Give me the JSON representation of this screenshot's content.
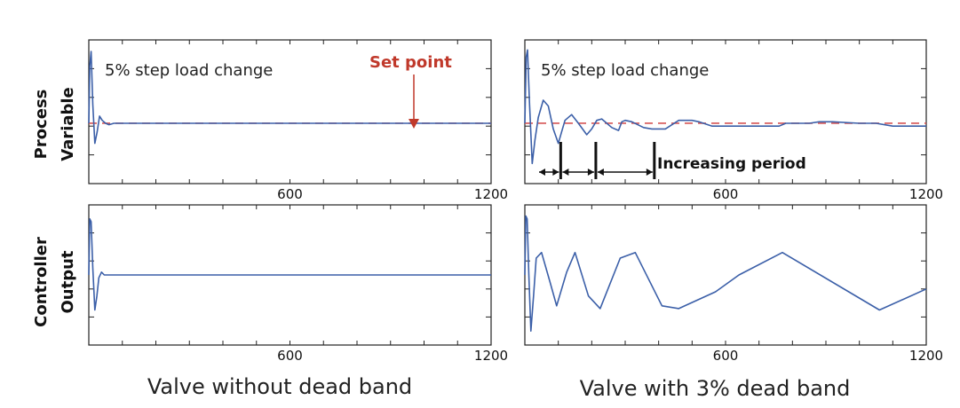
{
  "labels": {
    "pv_line1": "Process",
    "pv_line2": "Variable",
    "co_line1": "Controller",
    "co_line2": "Output",
    "left_title": "Valve without dead band",
    "right_title": "Valve with 3% dead band"
  },
  "annotations": {
    "step_left": "5% step load change",
    "step_right": "5% step load change",
    "set_point": "Set point",
    "increasing_period": "Increasing period"
  },
  "colors": {
    "trace": "#3b5fa8",
    "setpoint": "#d65555",
    "annotation_red": "#c0392b"
  },
  "chart_data": [
    {
      "id": "pv_no_deadband",
      "type": "line",
      "xlim": [
        0,
        1200
      ],
      "ylim": [
        0,
        1
      ],
      "xticks": [
        600,
        1200
      ],
      "xtick_labels": [
        "600",
        "1200"
      ],
      "setpoint": 0.42,
      "series": [
        {
          "x": [
            0,
            3,
            7,
            12,
            18,
            25,
            32,
            40,
            50,
            60,
            75,
            1200
          ],
          "y": [
            0.42,
            0.82,
            0.92,
            0.55,
            0.28,
            0.36,
            0.47,
            0.44,
            0.42,
            0.41,
            0.42,
            0.42
          ]
        }
      ]
    },
    {
      "id": "pv_deadband",
      "type": "line",
      "xlim": [
        0,
        1200
      ],
      "ylim": [
        0,
        1
      ],
      "xticks": [
        600,
        1200
      ],
      "xtick_labels": [
        "600",
        "1200"
      ],
      "setpoint": 0.42,
      "series": [
        {
          "x": [
            0,
            4,
            8,
            14,
            22,
            30,
            40,
            55,
            70,
            85,
            100,
            110,
            120,
            140,
            160,
            185,
            200,
            215,
            230,
            260,
            280,
            290,
            300,
            320,
            355,
            380,
            400,
            420,
            440,
            460,
            480,
            500,
            520,
            560,
            600,
            640,
            680,
            760,
            780,
            850,
            880,
            900,
            920,
            1000,
            1050,
            1100,
            1200
          ],
          "y": [
            0.42,
            0.88,
            0.93,
            0.55,
            0.14,
            0.3,
            0.46,
            0.58,
            0.54,
            0.38,
            0.28,
            0.36,
            0.44,
            0.48,
            0.42,
            0.34,
            0.38,
            0.44,
            0.45,
            0.39,
            0.37,
            0.43,
            0.44,
            0.43,
            0.39,
            0.38,
            0.38,
            0.38,
            0.41,
            0.44,
            0.44,
            0.44,
            0.43,
            0.4,
            0.4,
            0.4,
            0.4,
            0.4,
            0.42,
            0.42,
            0.43,
            0.43,
            0.43,
            0.42,
            0.42,
            0.4,
            0.4
          ]
        }
      ],
      "periods": [
        0,
        70,
        175,
        350
      ]
    },
    {
      "id": "co_no_deadband",
      "type": "line",
      "xlim": [
        0,
        1200
      ],
      "ylim": [
        0,
        1
      ],
      "xticks": [
        600,
        1200
      ],
      "xtick_labels": [
        "600",
        "1200"
      ],
      "series": [
        {
          "x": [
            0,
            3,
            7,
            12,
            18,
            24,
            30,
            38,
            46,
            60,
            1200
          ],
          "y": [
            0.5,
            0.9,
            0.88,
            0.55,
            0.25,
            0.35,
            0.48,
            0.52,
            0.5,
            0.5,
            0.5
          ]
        }
      ]
    },
    {
      "id": "co_deadband",
      "type": "line",
      "xlim": [
        0,
        1200
      ],
      "ylim": [
        0,
        1
      ],
      "xticks": [
        600,
        1200
      ],
      "xtick_labels": [
        "600",
        "1200"
      ],
      "series": [
        {
          "x": [
            0,
            3,
            7,
            12,
            18,
            26,
            34,
            50,
            75,
            95,
            125,
            150,
            190,
            225,
            285,
            330,
            410,
            460,
            570,
            640,
            770,
            1060,
            1200
          ],
          "y": [
            0.5,
            0.92,
            0.9,
            0.5,
            0.1,
            0.35,
            0.62,
            0.66,
            0.45,
            0.28,
            0.52,
            0.66,
            0.35,
            0.26,
            0.62,
            0.66,
            0.28,
            0.26,
            0.38,
            0.5,
            0.66,
            0.25,
            0.4
          ]
        }
      ]
    }
  ]
}
